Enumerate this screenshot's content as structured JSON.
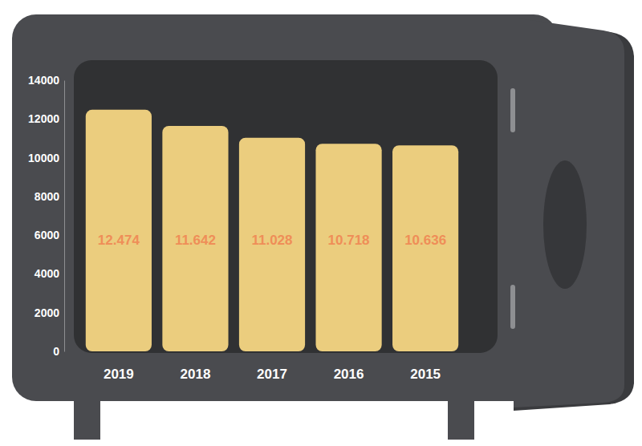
{
  "chart_data": {
    "type": "bar",
    "categories": [
      "2019",
      "2018",
      "2017",
      "2016",
      "2015"
    ],
    "values": [
      12474,
      11642,
      11028,
      10718,
      10636
    ],
    "value_labels": [
      "12.474",
      "11.642",
      "11.028",
      "10.718",
      "10.636"
    ],
    "color": "#ebcd7e",
    "ylim": [
      0,
      14000
    ],
    "yticks": [
      0,
      2000,
      4000,
      6000,
      8000,
      10000,
      12000,
      14000
    ],
    "data_labels": true
  }
}
